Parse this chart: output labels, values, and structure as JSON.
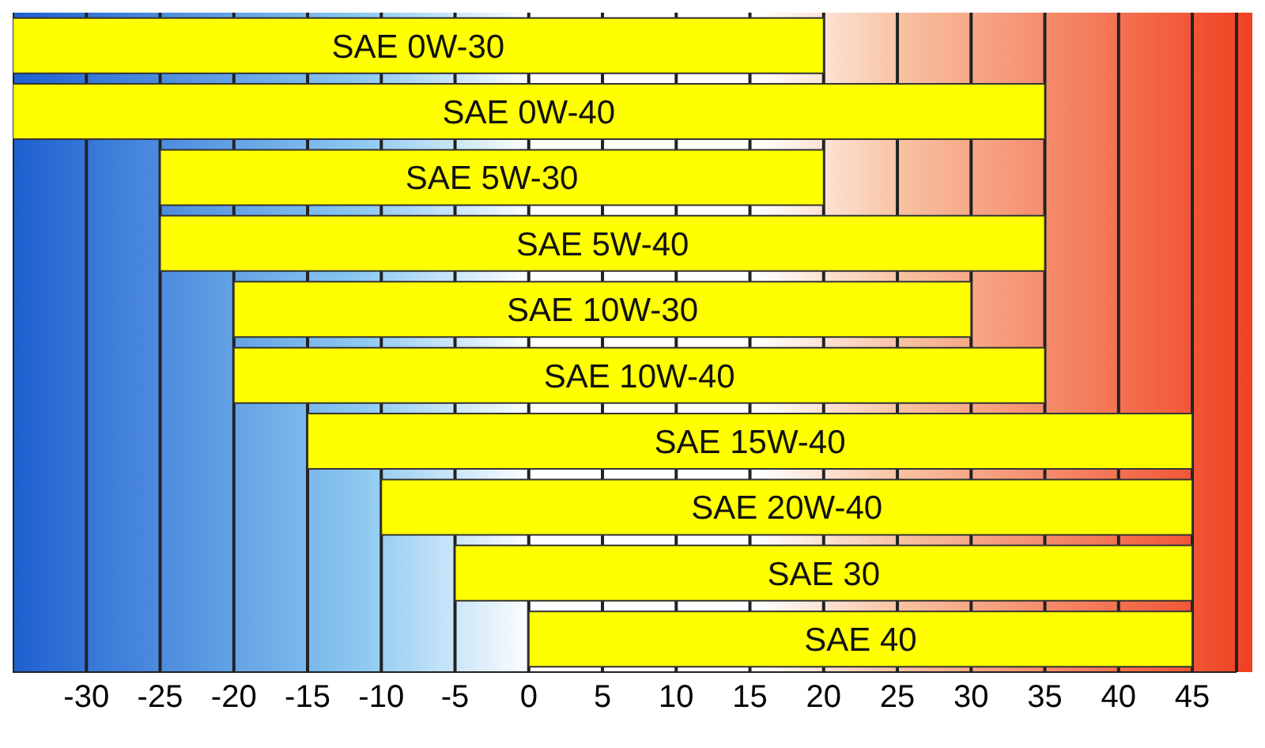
{
  "chart_data": {
    "type": "bar",
    "orientation": "horizontal",
    "categories": [
      "SAE 0W-30",
      "SAE 0W-40",
      "SAE 5W-30",
      "SAE 5W-40",
      "SAE 10W-30",
      "SAE 10W-40",
      "SAE 15W-40",
      "SAE 20W-40",
      "SAE 30",
      "SAE 40"
    ],
    "base": [
      -35,
      -35,
      -25,
      -25,
      -20,
      -20,
      -15,
      -10,
      -5,
      0
    ],
    "values": [
      55,
      70,
      45,
      60,
      50,
      55,
      60,
      55,
      50,
      45
    ],
    "color": "#ffff00",
    "xlim": [
      -35,
      48
    ],
    "xticks": [
      -30,
      -25,
      -20,
      -15,
      -10,
      -5,
      0,
      5,
      10,
      15,
      20,
      25,
      30,
      35,
      40,
      45
    ],
    "grid": "x",
    "tick_labels": "x"
  }
}
